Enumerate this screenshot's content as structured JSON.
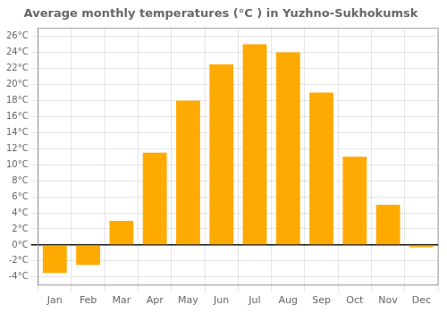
{
  "chart_data": {
    "type": "bar",
    "title": "Average monthly temperatures (°C ) in Yuzhno-Sukhokumsk",
    "categories": [
      "Jan",
      "Feb",
      "Mar",
      "Apr",
      "May",
      "Jun",
      "Jul",
      "Aug",
      "Sep",
      "Oct",
      "Nov",
      "Dec"
    ],
    "values": [
      -3.5,
      -2.5,
      3.0,
      11.5,
      18.0,
      22.5,
      25.0,
      24.0,
      19.0,
      11.0,
      5.0,
      -0.3
    ],
    "color": "#FFAA00",
    "ylim": [
      -5,
      27
    ],
    "yticks": [
      {
        "value": -4,
        "label": "-4°C"
      },
      {
        "value": -2,
        "label": "-2°C"
      },
      {
        "value": 0,
        "label": "0°C"
      },
      {
        "value": 2,
        "label": "2°C"
      },
      {
        "value": 4,
        "label": "4°C"
      },
      {
        "value": 6,
        "label": "6°C"
      },
      {
        "value": 8,
        "label": "8°C"
      },
      {
        "value": 10,
        "label": "10°C"
      },
      {
        "value": 12,
        "label": "12°C"
      },
      {
        "value": 14,
        "label": "14°C"
      },
      {
        "value": 16,
        "label": "16°C"
      },
      {
        "value": 18,
        "label": "18°C"
      },
      {
        "value": 20,
        "label": "20°C"
      },
      {
        "value": 22,
        "label": "22°C"
      },
      {
        "value": 24,
        "label": "24°C"
      },
      {
        "value": 26,
        "label": "26°C"
      }
    ],
    "grid": true
  }
}
